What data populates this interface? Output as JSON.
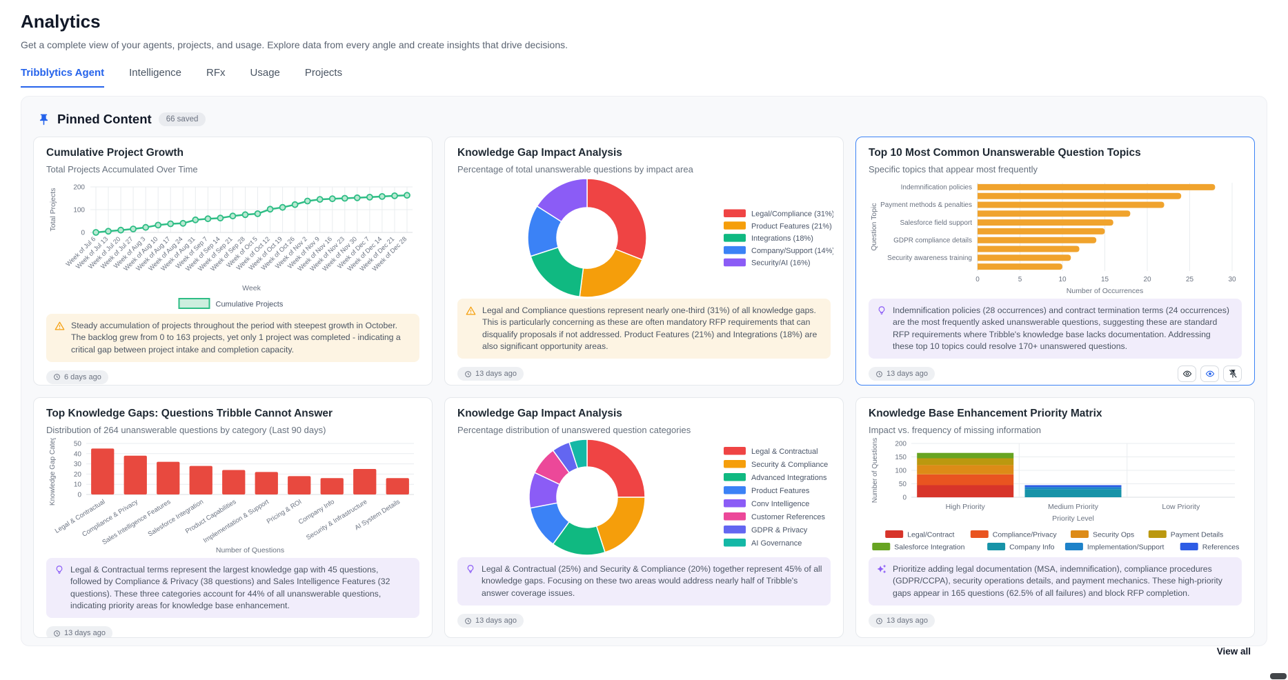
{
  "page": {
    "title": "Analytics",
    "subtitle": "Get a complete view of your agents, projects, and usage. Explore data from every angle and create insights that drive decisions."
  },
  "tabs": [
    {
      "label": "Tribblytics Agent",
      "active": true
    },
    {
      "label": "Intelligence",
      "active": false
    },
    {
      "label": "RFx",
      "active": false
    },
    {
      "label": "Usage",
      "active": false
    },
    {
      "label": "Projects",
      "active": false
    }
  ],
  "pinned": {
    "title": "Pinned Content",
    "badge": "66 saved",
    "view_all": "View all"
  },
  "cards": [
    {
      "title": "Cumulative Project Growth",
      "subtitle": "Total Projects Accumulated Over Time",
      "insight_icon": "warning-triangle-icon",
      "insight": "Steady accumulation of projects throughout the period with steepest growth in October. The backlog grew from 0 to 163 projects, yet only 1 project was completed - indicating a critical gap between project intake and completion capacity.",
      "timestamp": "6 days ago"
    },
    {
      "title": "Knowledge Gap Impact Analysis",
      "subtitle": "Percentage of total unanswerable questions by impact area",
      "insight_icon": "warning-triangle-icon",
      "insight": "Legal and Compliance questions represent nearly one-third (31%) of all knowledge gaps. This is particularly concerning as these are often mandatory RFP requirements that can disqualify proposals if not addressed. Product Features (21%) and Integrations (18%) are also significant opportunity areas.",
      "timestamp": "13 days ago"
    },
    {
      "title": "Top 10 Most Common Unanswerable Question Topics",
      "subtitle": "Specific topics that appear most frequently",
      "insight_icon": "lightbulb-icon",
      "insight": "Indemnification policies (28 occurrences) and contract termination terms (24 occurrences) are the most frequently asked unanswerable questions, suggesting these are standard RFP requirements where Tribble's knowledge base lacks documentation. Addressing these top 10 topics could resolve 170+ unanswered questions.",
      "timestamp": "13 days ago",
      "actions": [
        "eye-icon",
        "eye-blue-icon",
        "pin-off-icon"
      ]
    },
    {
      "title": "Top Knowledge Gaps: Questions Tribble Cannot Answer",
      "subtitle": "Distribution of 264 unanswerable questions by category (Last 90 days)",
      "insight_icon": "lightbulb-icon",
      "insight": "Legal & Contractual terms represent the largest knowledge gap with 45 questions, followed by Compliance & Privacy (38 questions) and Sales Intelligence Features (32 questions). These three categories account for 44% of all unanswerable questions, indicating priority areas for knowledge base enhancement.",
      "timestamp": "13 days ago"
    },
    {
      "title": "Knowledge Gap Impact Analysis",
      "subtitle": "Percentage distribution of unanswered question categories",
      "insight_icon": "lightbulb-icon",
      "insight": "Legal & Contractual (25%) and Security & Compliance (20%) together represent 45% of all knowledge gaps. Focusing on these two areas would address nearly half of Tribble's answer coverage issues.",
      "timestamp": "13 days ago"
    },
    {
      "title": "Knowledge Base Enhancement Priority Matrix",
      "subtitle": "Impact vs. frequency of missing information",
      "insight_icon": "sparkle-icon",
      "insight": "Prioritize adding legal documentation (MSA, indemnification), compliance procedures (GDPR/CCPA), security operations details, and payment mechanics. These high-priority gaps appear in 165 questions (62.5% of all failures) and block RFP completion.",
      "timestamp": "13 days ago"
    }
  ],
  "chart_data": [
    {
      "type": "line",
      "title": "Cumulative Project Growth",
      "x": [
        "Week of Jul 6",
        "Week of Jul 13",
        "Week of Jul 20",
        "Week of Jul 27",
        "Week of Aug 3",
        "Week of Aug 10",
        "Week of Aug 17",
        "Week of Aug 24",
        "Week of Aug 31",
        "Week of Sep 7",
        "Week of Sep 14",
        "Week of Sep 21",
        "Week of Sep 28",
        "Week of Oct 5",
        "Week of Oct 12",
        "Week of Oct 19",
        "Week of Oct 26",
        "Week of Nov 2",
        "Week of Nov 9",
        "Week of Nov 16",
        "Week of Nov 23",
        "Week of Nov 30",
        "Week of Dec 7",
        "Week of Dec 14",
        "Week of Dec 21",
        "Week of Dec 28"
      ],
      "series": [
        {
          "name": "Cumulative Projects",
          "values": [
            0,
            5,
            10,
            15,
            22,
            32,
            38,
            40,
            55,
            60,
            63,
            72,
            78,
            82,
            102,
            110,
            122,
            138,
            145,
            148,
            150,
            152,
            155,
            158,
            161,
            163
          ]
        }
      ],
      "xlabel": "Week",
      "ylabel": "Total Projects",
      "ylim": [
        0,
        200
      ],
      "yticks": [
        0,
        100,
        200
      ],
      "grid": true,
      "legend_position": "bottom",
      "color": "#2ebd85"
    },
    {
      "type": "pie",
      "title": "Knowledge Gap Impact Analysis",
      "labels": [
        "Legal/Compliance (31%)",
        "Product Features (21%)",
        "Integrations (18%)",
        "Company/Support (14%)",
        "Security/AI (16%)"
      ],
      "values": [
        31,
        21,
        18,
        14,
        16
      ],
      "colors": [
        "#ef4444",
        "#f59e0b",
        "#10b981",
        "#3b82f6",
        "#8b5cf6"
      ],
      "donut": true,
      "legend_position": "right"
    },
    {
      "type": "bar",
      "orientation": "horizontal",
      "title": "Top 10 Most Common Unanswerable Question Topics",
      "categories": [
        "Indemnification policies",
        "",
        "Payment methods & penalties",
        "",
        "Salesforce field support",
        "",
        "GDPR compliance details",
        "",
        "Security awareness training",
        ""
      ],
      "values": [
        28,
        24,
        22,
        18,
        16,
        15,
        14,
        12,
        11,
        10
      ],
      "xlabel": "Number of Occurrences",
      "ylabel": "Question Topic",
      "xlim": [
        0,
        30
      ],
      "xticks": [
        0,
        5,
        10,
        15,
        20,
        25,
        30
      ],
      "grid": true,
      "color": "#f0a32d"
    },
    {
      "type": "bar",
      "orientation": "vertical",
      "title": "Top Knowledge Gaps: Questions Tribble Cannot Answer",
      "categories": [
        "Legal & Contractual",
        "Compliance & Privacy",
        "Sales Intelligence Features",
        "Salesforce Integration",
        "Product Capabilities",
        "Implementation & Support",
        "Pricing & ROI",
        "Company Info",
        "Security & Infrastructure",
        "AI System Details"
      ],
      "values": [
        45,
        38,
        32,
        28,
        24,
        22,
        18,
        16,
        25,
        16
      ],
      "xlabel": "Number of Questions",
      "ylabel": "Knowledge Gap Catego",
      "ylim": [
        0,
        50
      ],
      "yticks": [
        0,
        10,
        20,
        30,
        40,
        50
      ],
      "grid": true,
      "color": "#e8493f"
    },
    {
      "type": "pie",
      "title": "Knowledge Gap Impact Analysis",
      "labels": [
        "Legal & Contractual",
        "Security & Compliance",
        "Advanced Integrations",
        "Product Features",
        "Conv Intelligence",
        "Customer References",
        "GDPR & Privacy",
        "AI Governance"
      ],
      "values": [
        25,
        20,
        15,
        12,
        10,
        8,
        5,
        5
      ],
      "colors": [
        "#ef4444",
        "#f59e0b",
        "#10b981",
        "#3b82f6",
        "#8b5cf6",
        "#ec4899",
        "#6366f1",
        "#14b8a6"
      ],
      "donut": true,
      "legend_position": "right"
    },
    {
      "type": "bar",
      "stacked": true,
      "title": "Knowledge Base Enhancement Priority Matrix",
      "categories": [
        "High Priority",
        "Medium Priority",
        "Low Priority"
      ],
      "series": [
        {
          "name": "Legal/Contract",
          "color": "#d7342a",
          "values": [
            45,
            0,
            0
          ]
        },
        {
          "name": "Compliance/Privacy",
          "color": "#e95420",
          "values": [
            40,
            0,
            0
          ]
        },
        {
          "name": "Security Ops",
          "color": "#dd8b17",
          "values": [
            35,
            0,
            0
          ]
        },
        {
          "name": "Payment Details",
          "color": "#bb980f",
          "values": [
            25,
            0,
            0
          ]
        },
        {
          "name": "Salesforce Integration",
          "color": "#67a422",
          "values": [
            20,
            0,
            0
          ]
        },
        {
          "name": "Company Info",
          "color": "#1793a8",
          "values": [
            0,
            30,
            0
          ]
        },
        {
          "name": "Implementation/Support",
          "color": "#1d82c9",
          "values": [
            0,
            8,
            0
          ]
        },
        {
          "name": "References",
          "color": "#2d5ce5",
          "values": [
            0,
            7,
            0
          ]
        }
      ],
      "xlabel": "Priority Level",
      "ylabel": "Number of Questions",
      "ylim": [
        0,
        200
      ],
      "yticks": [
        0,
        50,
        100,
        150,
        200
      ],
      "grid": true,
      "legend_position": "bottom"
    }
  ]
}
